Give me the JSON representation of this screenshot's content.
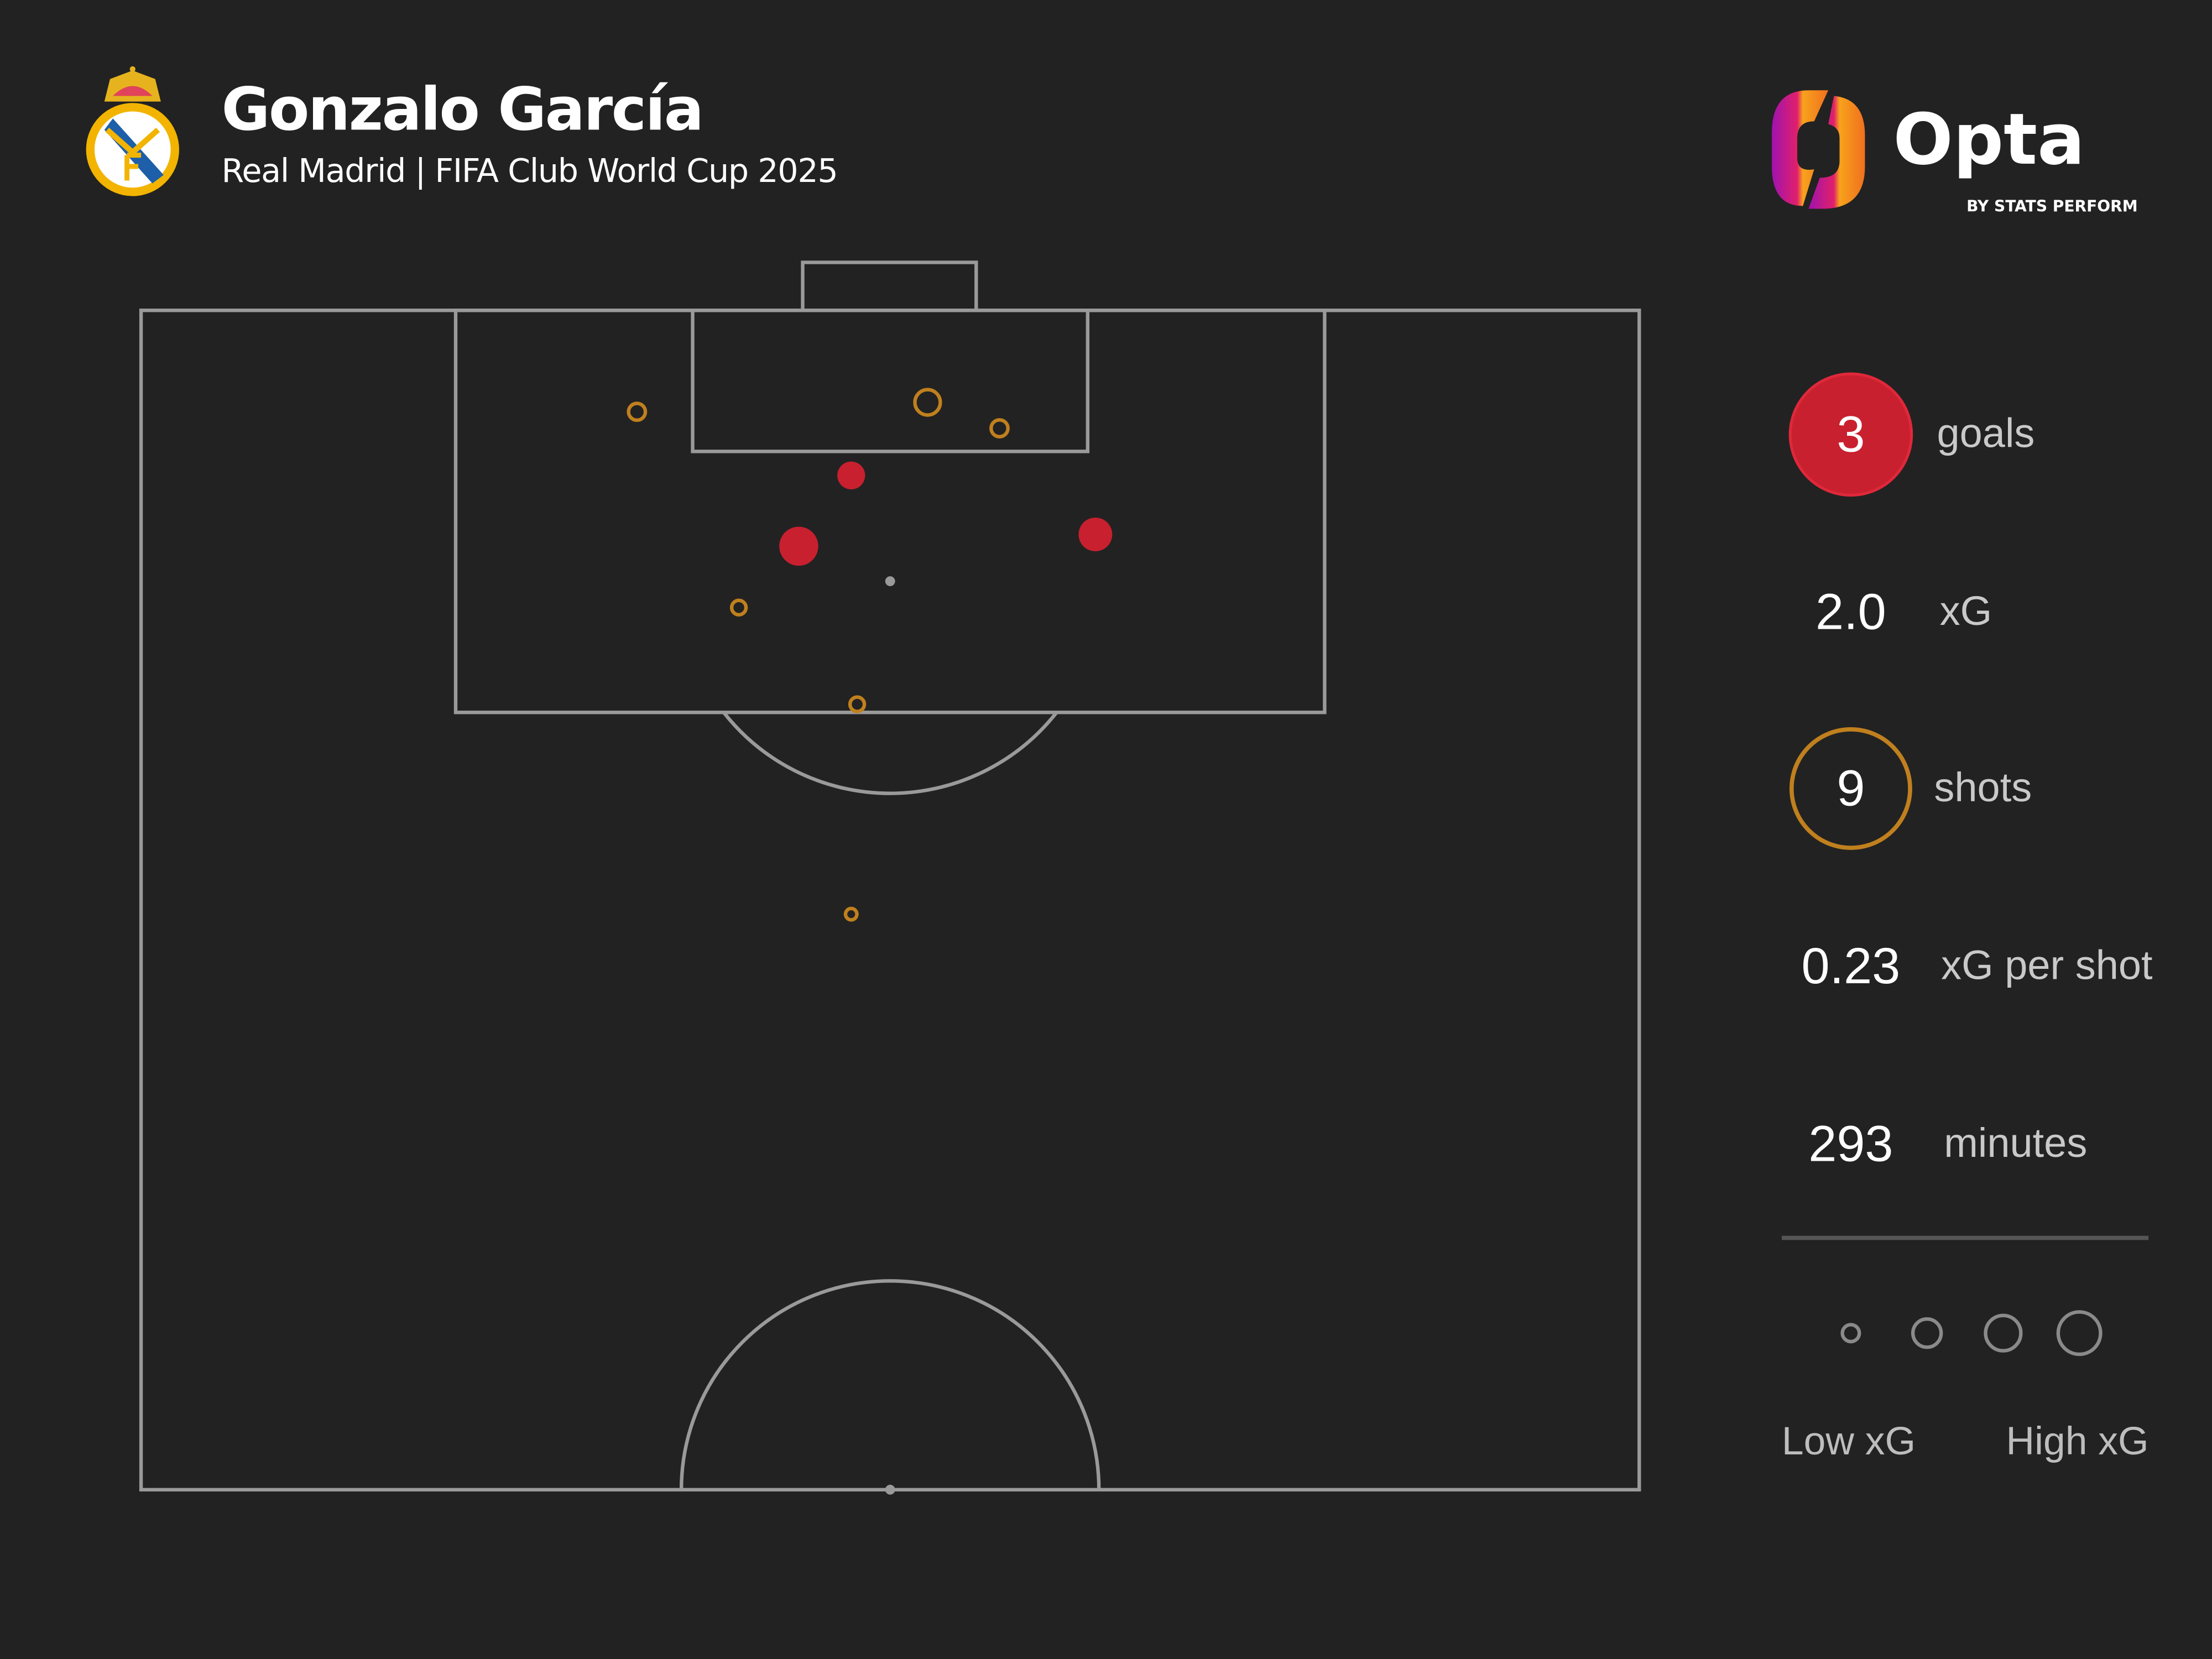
{
  "header": {
    "title": "Gonzalo García",
    "subtitle": "Real Madrid | FIFA Club World Cup 2025",
    "club_crest": "Real Madrid",
    "brand_logo": "Opta",
    "brand_tagline": "BY STATS PERFORM"
  },
  "colors": {
    "background": "#222222",
    "pitch_lines": "#9a9a9a",
    "goal": "#c8202f",
    "shot": "#c0801e"
  },
  "stats": {
    "goals_value": "3",
    "goals_label": "goals",
    "xg_value": "2.0",
    "xg_label": "xG",
    "shots_value": "9",
    "shots_label": "shots",
    "xg_per_shot_value": "0.23",
    "xg_per_shot_label": "xG per shot",
    "minutes_value": "293",
    "minutes_label": "minutes"
  },
  "legend": {
    "low_label": "Low xG",
    "high_label": "High xG"
  },
  "chart_data": {
    "type": "scatter",
    "description_pitch": "opta half-pitch, x = length toward goal (0-100), y = width (0-100)",
    "xlim": [
      50,
      100
    ],
    "ylim": [
      0,
      100
    ],
    "shots": [
      {
        "x": 93.0,
        "y": 47.4,
        "xg": 0.3,
        "outcome": "goal"
      },
      {
        "x": 90.0,
        "y": 43.9,
        "xg": 0.59,
        "outcome": "goal"
      },
      {
        "x": 90.5,
        "y": 63.7,
        "xg": 0.44,
        "outcome": "goal"
      },
      {
        "x": 95.7,
        "y": 33.1,
        "xg": 0.11,
        "outcome": "shot"
      },
      {
        "x": 96.1,
        "y": 52.5,
        "xg": 0.25,
        "outcome": "shot"
      },
      {
        "x": 95.0,
        "y": 57.3,
        "xg": 0.11,
        "outcome": "shot"
      },
      {
        "x": 87.4,
        "y": 39.9,
        "xg": 0.08,
        "outcome": "shot"
      },
      {
        "x": 83.3,
        "y": 47.8,
        "xg": 0.08,
        "outcome": "shot"
      },
      {
        "x": 74.4,
        "y": 47.4,
        "xg": 0.05,
        "outcome": "shot"
      }
    ]
  }
}
